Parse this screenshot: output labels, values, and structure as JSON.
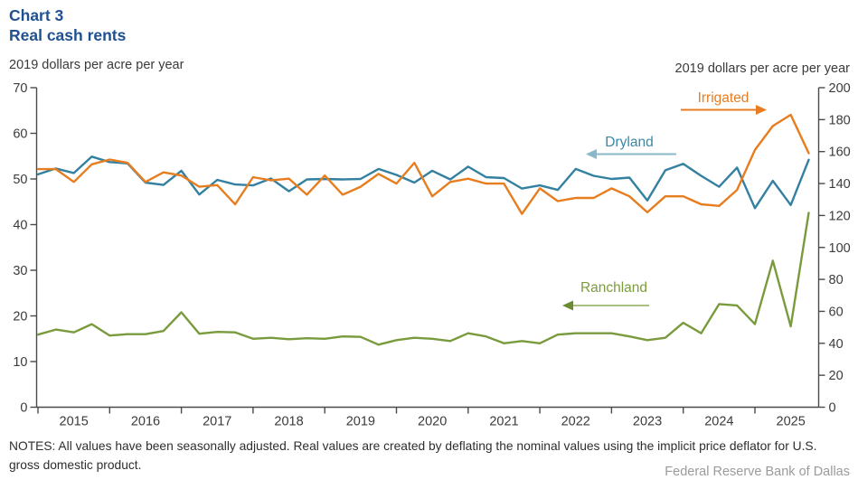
{
  "header": {
    "chart_number": "Chart 3",
    "title": "Real cash rents"
  },
  "left_axis": {
    "label": "2019 dollars per acre per year",
    "min": 0,
    "max": 70,
    "ticks": [
      0,
      10,
      20,
      30,
      40,
      50,
      60,
      70
    ]
  },
  "right_axis": {
    "label": "2019 dollars per acre per year",
    "min": 0,
    "max": 200,
    "ticks": [
      0,
      20,
      40,
      60,
      80,
      100,
      120,
      140,
      160,
      180,
      200
    ]
  },
  "x_axis": {
    "years": [
      "2015",
      "2016",
      "2017",
      "2018",
      "2019",
      "2020",
      "2021",
      "2022",
      "2023",
      "2024",
      "2025"
    ]
  },
  "series_labels": [
    {
      "label": "Irrigated",
      "text_color": "#e87c22",
      "arrow_color": "#e87c22",
      "head_color": "#e87c22",
      "arrow": "right"
    },
    {
      "label": "Dryland",
      "text_color": "#3b87a6",
      "arrow_color": "#8ab8cb",
      "head_color": "#8ab8cb",
      "arrow": "left"
    },
    {
      "label": "Ranchland",
      "text_color": "#7b9c3e",
      "arrow_color": "#a9c180",
      "head_color": "#6b8b33",
      "arrow": "left"
    }
  ],
  "notes": "NOTES: All values have been seasonally adjusted. Real values are created by deflating the nominal values using the implicit price deflator for U.S. gross domestic product.",
  "footer": "Federal Reserve Bank of Dallas",
  "chart_data": {
    "type": "line",
    "title": "Real cash rents",
    "x_label": "",
    "left_ylabel": "2019 dollars per acre per year",
    "right_ylabel": "2019 dollars per acre per year",
    "left_ylim": [
      0,
      70
    ],
    "right_ylim": [
      0,
      200
    ],
    "grid": false,
    "legend_position": "inline-annotations",
    "x": [
      "2015 Q1",
      "2015 Q2",
      "2015 Q3",
      "2015 Q4",
      "2016 Q1",
      "2016 Q2",
      "2016 Q3",
      "2016 Q4",
      "2017 Q1",
      "2017 Q2",
      "2017 Q3",
      "2017 Q4",
      "2018 Q1",
      "2018 Q2",
      "2018 Q3",
      "2018 Q4",
      "2019 Q1",
      "2019 Q2",
      "2019 Q3",
      "2019 Q4",
      "2020 Q1",
      "2020 Q2",
      "2020 Q3",
      "2020 Q4",
      "2021 Q1",
      "2021 Q2",
      "2021 Q3",
      "2021 Q4",
      "2022 Q1",
      "2022 Q2",
      "2022 Q3",
      "2022 Q4",
      "2023 Q1",
      "2023 Q2",
      "2023 Q3",
      "2023 Q4",
      "2024 Q1",
      "2024 Q2",
      "2024 Q3",
      "2024 Q4",
      "2025 Q1",
      "2025 Q2",
      "2025 Q3",
      "2025 Q4"
    ],
    "series": [
      {
        "name": "Dryland",
        "axis": "left",
        "color": "#3380a0",
        "values": [
          51.0,
          52.3,
          51.3,
          54.9,
          53.7,
          53.4,
          49.2,
          48.7,
          51.8,
          46.6,
          49.8,
          48.8,
          48.6,
          50.1,
          47.3,
          49.9,
          50.0,
          49.9,
          50.0,
          52.2,
          50.9,
          49.2,
          51.8,
          49.9,
          52.7,
          50.4,
          50.2,
          47.9,
          48.6,
          47.6,
          52.2,
          50.7,
          50.0,
          50.3,
          45.3,
          51.9,
          53.3,
          50.7,
          48.3,
          52.5,
          43.6,
          49.6,
          44.3,
          54.2
        ]
      },
      {
        "name": "Irrigated",
        "axis": "right",
        "color": "#e87d1f",
        "values": [
          149,
          149,
          141,
          152,
          155,
          153,
          141,
          147,
          145,
          138,
          139,
          127,
          144,
          142,
          143,
          133,
          145,
          133,
          138,
          146,
          140,
          153,
          132,
          141,
          143,
          140,
          140,
          121,
          137,
          129,
          131,
          131,
          137,
          132,
          122,
          132,
          132,
          127,
          126,
          136,
          161,
          176,
          183,
          159
        ]
      },
      {
        "name": "Ranchland",
        "axis": "left",
        "color": "#7a9b3d",
        "values": [
          15.9,
          17.0,
          16.4,
          18.2,
          15.7,
          16.0,
          16.0,
          16.7,
          20.8,
          16.1,
          16.5,
          16.4,
          15.0,
          15.2,
          14.9,
          15.1,
          15.0,
          15.5,
          15.4,
          13.7,
          14.7,
          15.2,
          15.0,
          14.5,
          16.2,
          15.5,
          14.0,
          14.5,
          14.0,
          15.9,
          16.2,
          16.2,
          16.2,
          15.5,
          14.7,
          15.2,
          18.5,
          16.2,
          22.6,
          22.3,
          18.2,
          32.1,
          17.7,
          42.6
        ]
      }
    ]
  }
}
